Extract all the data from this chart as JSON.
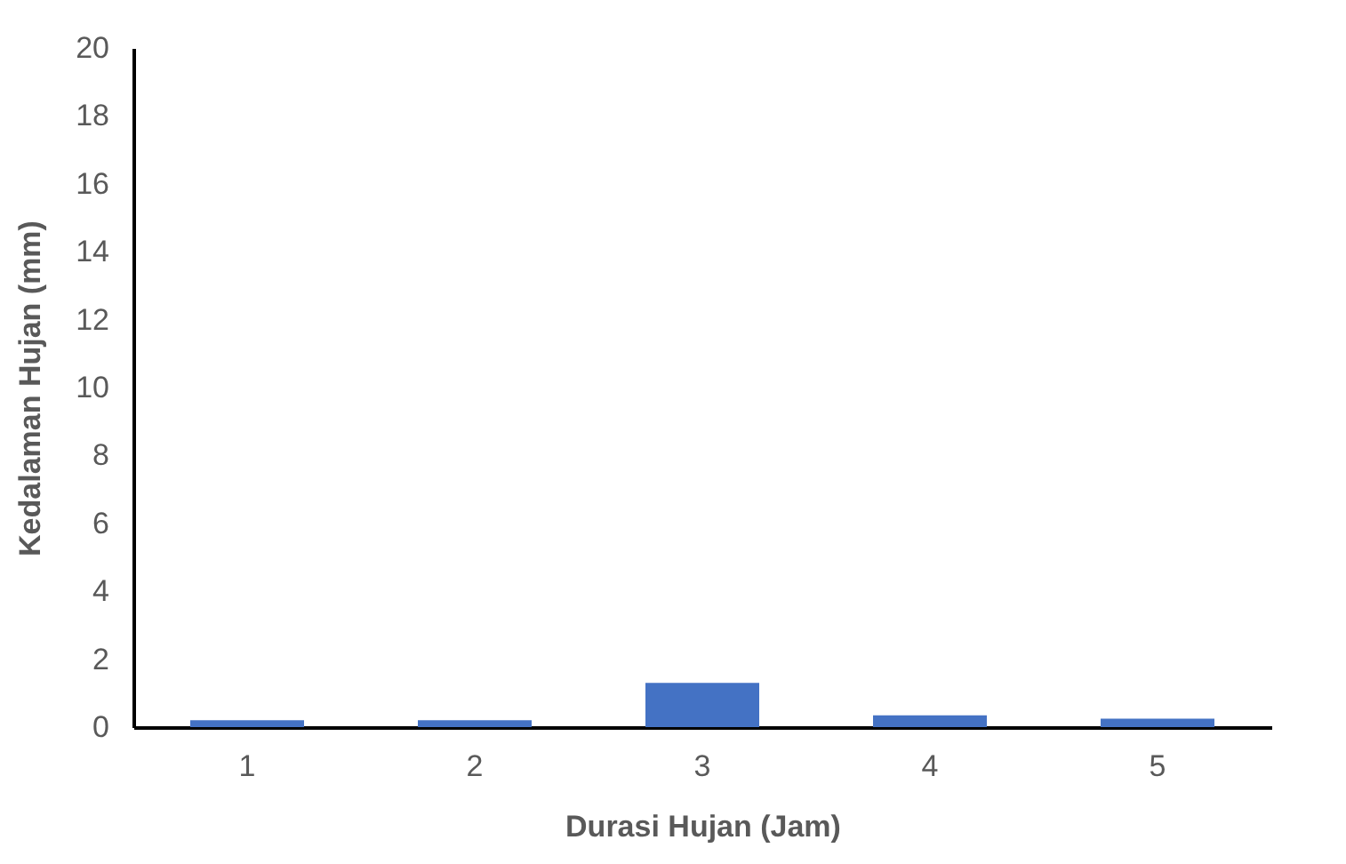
{
  "chart_data": {
    "type": "bar",
    "xlabel": "Durasi Hujan (Jam)",
    "ylabel": "Kedalaman Hujan (mm)",
    "categories": [
      "1",
      "2",
      "3",
      "4",
      "5"
    ],
    "values": [
      0.2,
      0.2,
      1.3,
      0.35,
      0.25
    ],
    "color": "#4472c4",
    "ylim": [
      0,
      20
    ],
    "yticks": [
      0,
      2,
      4,
      6,
      8,
      10,
      12,
      14,
      16,
      18,
      20
    ],
    "grid": false
  }
}
